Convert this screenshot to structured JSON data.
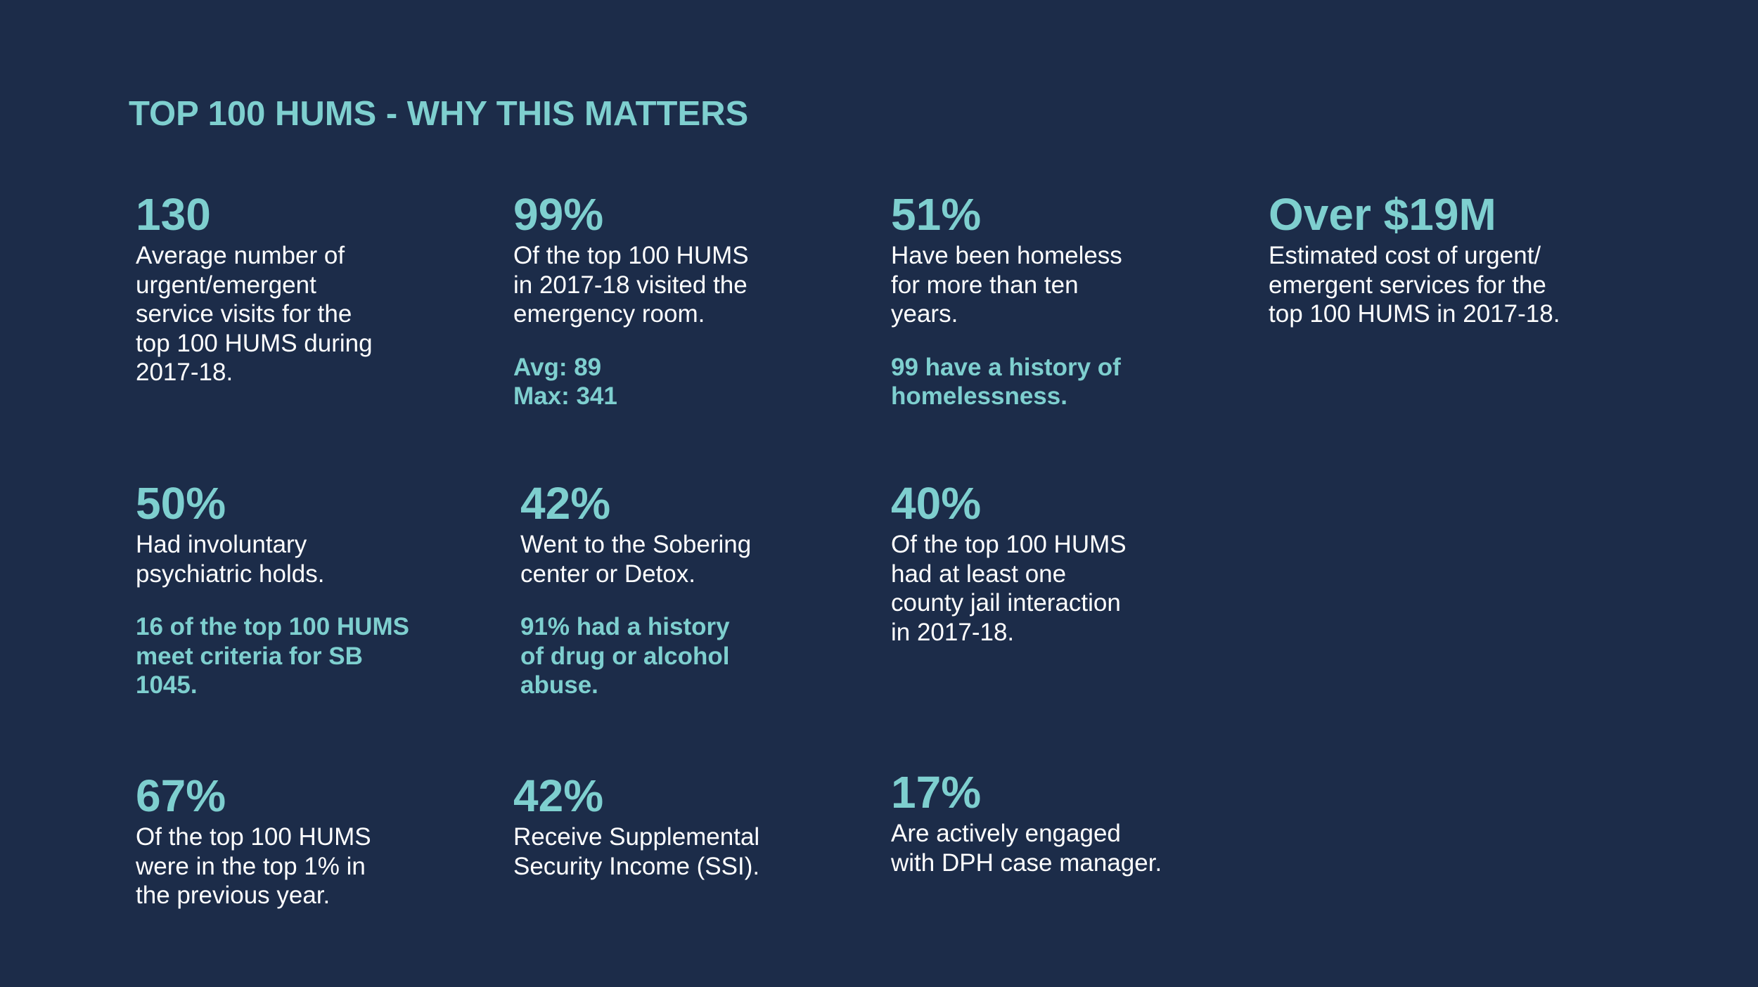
{
  "title": "TOP 100 HUMS - WHY THIS MATTERS",
  "stats": [
    {
      "value": "130",
      "description": "Average number of\nurgent/emergent\nservice visits for the\ntop 100 HUMS during\n2017-18.",
      "note": ""
    },
    {
      "value": "99%",
      "description": "Of the top 100 HUMS\nin 2017-18 visited the\nemergency room.",
      "note": "Avg: 89\nMax: 341"
    },
    {
      "value": "51%",
      "description": "Have been homeless\nfor more than ten\nyears.",
      "note": "99 have a history of\nhomelessness."
    },
    {
      "value": "Over $19M",
      "description": "Estimated cost of urgent/\nemergent services for the\ntop 100 HUMS in 2017-18.",
      "note": ""
    },
    {
      "value": "50%",
      "description": "Had involuntary\npsychiatric holds.",
      "note": "16 of the top 100 HUMS\nmeet criteria for SB\n1045."
    },
    {
      "value": "42%",
      "description": "Went to the Sobering\ncenter or Detox.",
      "note": "91% had a history\nof drug or alcohol\nabuse."
    },
    {
      "value": "40%",
      "description": "Of the top 100 HUMS\nhad at least one\ncounty jail interaction\nin 2017-18.",
      "note": ""
    },
    {
      "value": "67%",
      "description": "Of the top 100 HUMS\nwere in the top 1% in\nthe previous year.",
      "note": ""
    },
    {
      "value": "42%",
      "description": "Receive Supplemental\nSecurity Income (SSI).",
      "note": ""
    },
    {
      "value": "17%",
      "description": "Are actively engaged\nwith DPH case manager.",
      "note": ""
    }
  ]
}
